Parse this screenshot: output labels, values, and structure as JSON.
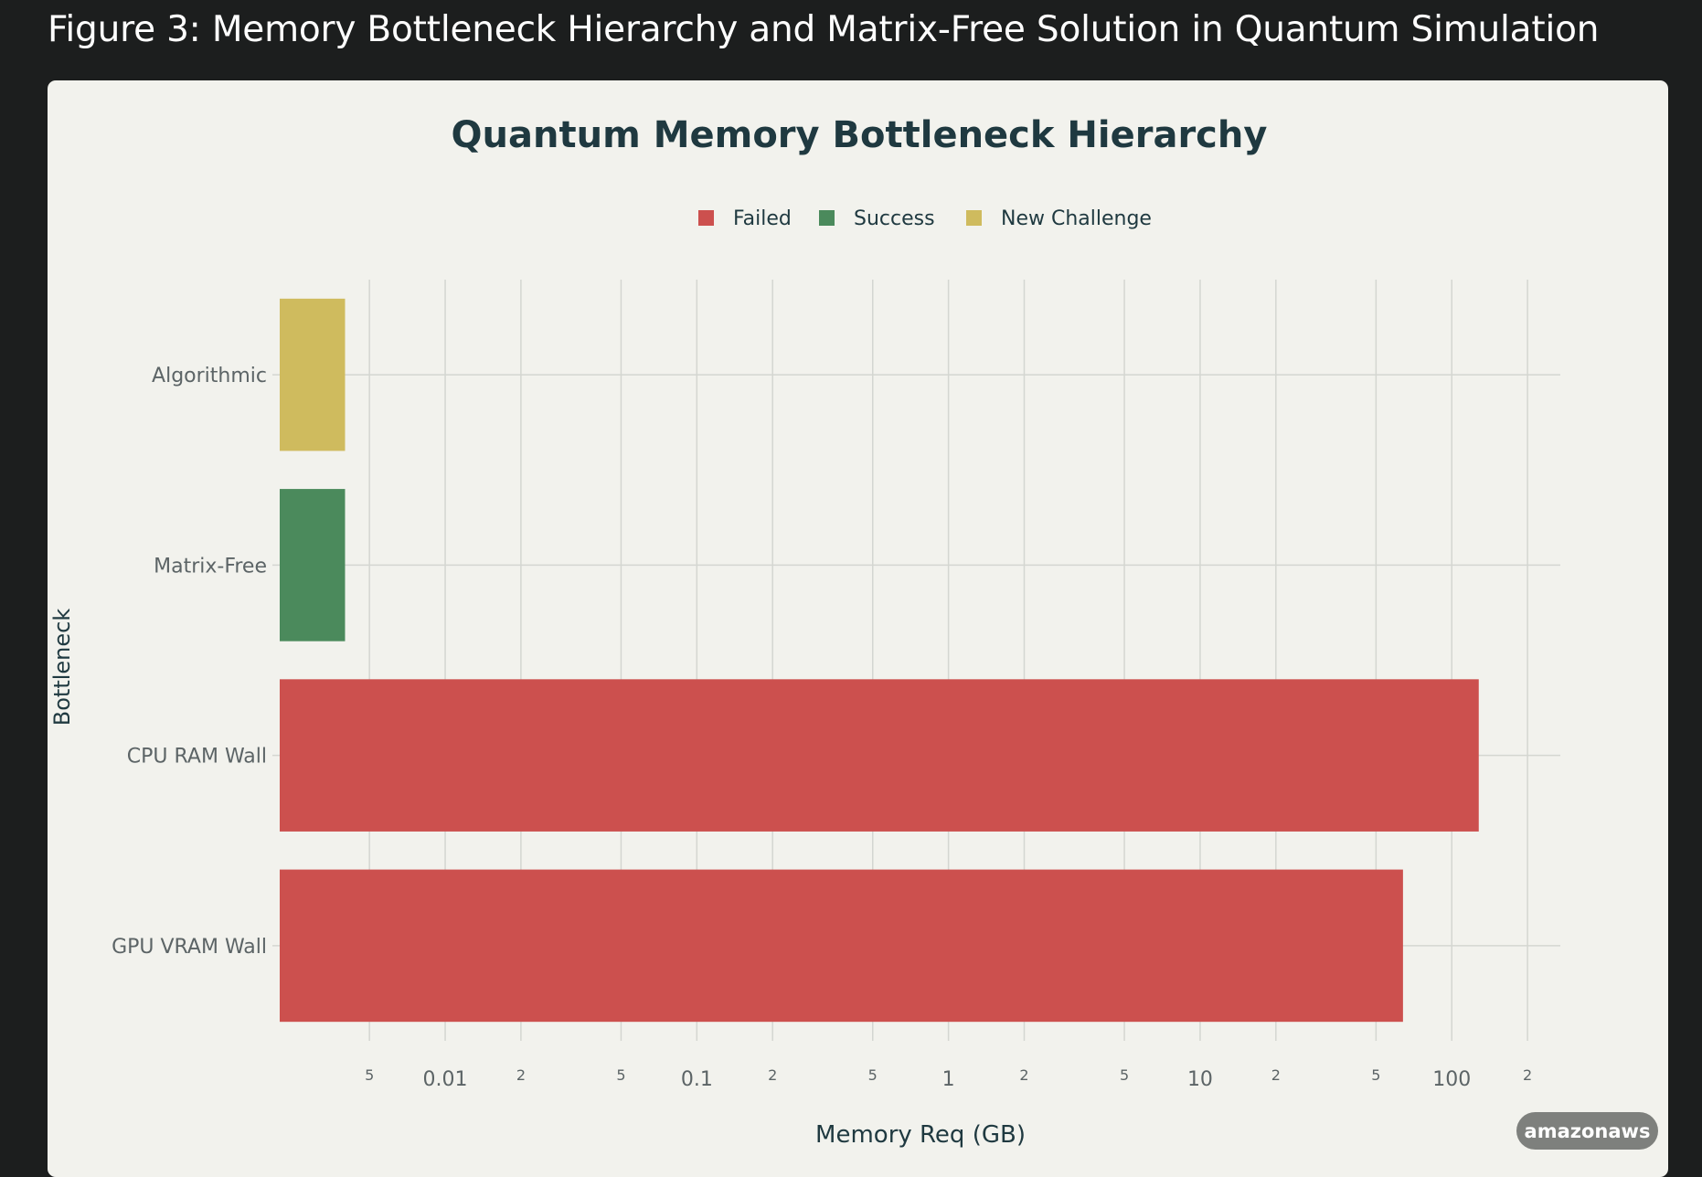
{
  "figure_title": "Figure 3: Memory Bottleneck Hierarchy and Matrix-Free Solution in Quantum Simulation",
  "watermark": "amazonaws",
  "colors": {
    "page_background": "#1c1e1e",
    "card_background": "#f2f2ed",
    "title_text": "#1f3940",
    "failed": "#cc504e",
    "success": "#4b8a5c",
    "new_challenge": "#cfbb5e",
    "grid": "#d4d6d1"
  },
  "chart_data": {
    "type": "bar",
    "orientation": "horizontal",
    "title": "Quantum Memory Bottleneck Hierarchy",
    "xlabel": "Memory Req (GB)",
    "ylabel": "Bottleneck",
    "x_scale": "log",
    "xlim": [
      0.0022,
      270
    ],
    "grid": true,
    "legend_position": "top-center",
    "legend": [
      {
        "name": "Failed",
        "color": "#cc504e"
      },
      {
        "name": "Success",
        "color": "#4b8a5c"
      },
      {
        "name": "New Challenge",
        "color": "#cfbb5e"
      }
    ],
    "categories": [
      "GPU VRAM Wall",
      "CPU RAM Wall",
      "Matrix-Free",
      "Algorithmic"
    ],
    "values": [
      64,
      128,
      0.004,
      0.004
    ],
    "status": [
      "Failed",
      "Failed",
      "Success",
      "New Challenge"
    ],
    "x_ticks": [
      {
        "value": 0.005,
        "label": "5",
        "minor": true
      },
      {
        "value": 0.01,
        "label": "0.01",
        "minor": false
      },
      {
        "value": 0.02,
        "label": "2",
        "minor": true
      },
      {
        "value": 0.05,
        "label": "5",
        "minor": true
      },
      {
        "value": 0.1,
        "label": "0.1",
        "minor": false
      },
      {
        "value": 0.2,
        "label": "2",
        "minor": true
      },
      {
        "value": 0.5,
        "label": "5",
        "minor": true
      },
      {
        "value": 1,
        "label": "1",
        "minor": false
      },
      {
        "value": 2,
        "label": "2",
        "minor": true
      },
      {
        "value": 5,
        "label": "5",
        "minor": true
      },
      {
        "value": 10,
        "label": "10",
        "minor": false
      },
      {
        "value": 20,
        "label": "2",
        "minor": true
      },
      {
        "value": 50,
        "label": "5",
        "minor": true
      },
      {
        "value": 100,
        "label": "100",
        "minor": false
      },
      {
        "value": 200,
        "label": "2",
        "minor": true
      }
    ]
  }
}
